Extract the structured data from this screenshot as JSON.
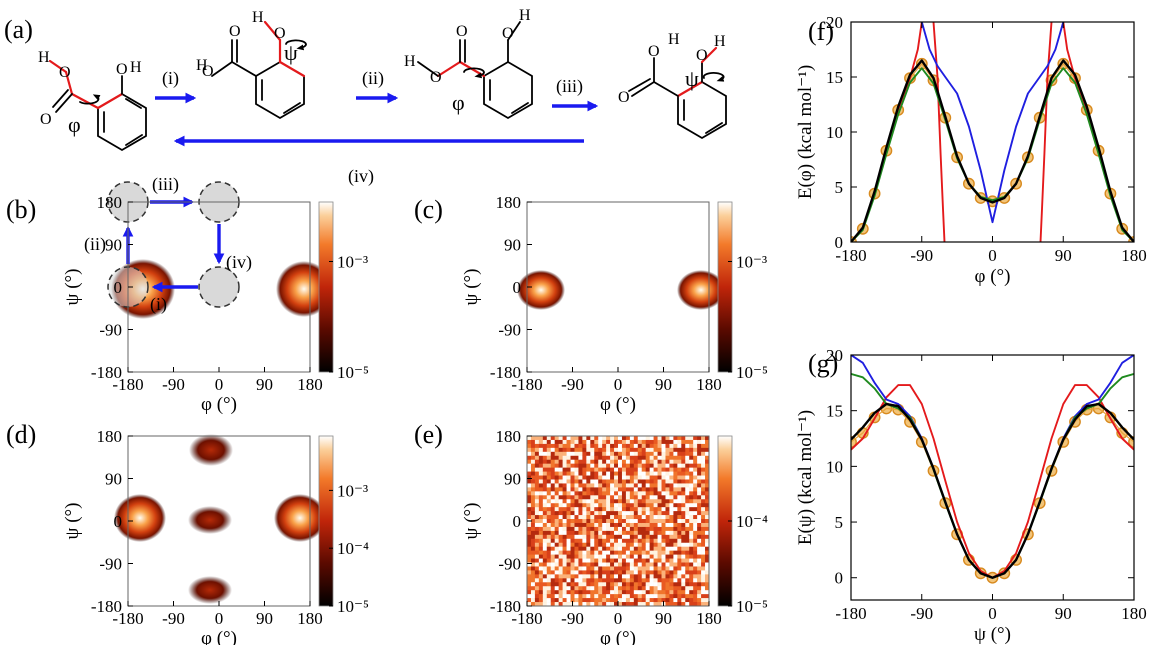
{
  "panel_labels": {
    "a": "(a)",
    "b": "(b)",
    "c": "(c)",
    "d": "(d)",
    "e": "(e)",
    "f": "(f)",
    "g": "(g)"
  },
  "scheme": {
    "steps": [
      "(i)",
      "(ii)",
      "(iii)",
      "(iv)"
    ],
    "atoms": {
      "O": "O",
      "H": "H"
    },
    "angles": {
      "phi": "φ",
      "psi": "ψ"
    }
  },
  "colors": {
    "arrow": "#1a1af0",
    "red": "#e41a1c",
    "orange": "#e8a23a",
    "green": "#1f8a1f",
    "blue": "#1f1fe0",
    "black": "#000000"
  },
  "maps": {
    "xlabel": "φ (°)",
    "ylabel": "ψ (°)",
    "ticks": [
      "-180",
      "-90",
      "0",
      "90",
      "180"
    ],
    "colorbar_ticks": {
      "b": [
        "10⁻³",
        "10⁻⁵"
      ],
      "c": [
        "10⁻³",
        "10⁻⁵"
      ],
      "d": [
        "10⁻³",
        "10⁻⁴",
        "10⁻⁵"
      ],
      "e": [
        "10⁻⁴",
        "10⁻⁵"
      ]
    },
    "path_labels": [
      "(i)",
      "(ii)",
      "(iii)",
      "(iv)"
    ]
  },
  "chart_data": [
    {
      "id": "f",
      "type": "line",
      "xlabel": "φ (°)",
      "ylabel": "E(φ) (kcal mol⁻¹)",
      "xlim": [
        -180,
        180
      ],
      "ylim": [
        0,
        20
      ],
      "xticks": [
        "-180",
        "-90",
        "0",
        "90",
        "180"
      ],
      "yticks": [
        "0",
        "5",
        "10",
        "15",
        "20"
      ],
      "series": [
        {
          "style": "orange-circles",
          "x": [
            -180,
            -165,
            -150,
            -135,
            -120,
            -105,
            -90,
            -75,
            -60,
            -45,
            -30,
            -15,
            0,
            15,
            30,
            45,
            60,
            75,
            90,
            105,
            120,
            135,
            150,
            165,
            180
          ],
          "values": [
            0,
            1.2,
            4.4,
            8.3,
            12.0,
            14.9,
            16.2,
            14.7,
            11.3,
            7.7,
            5.3,
            4.0,
            3.7,
            4.0,
            5.3,
            7.7,
            11.3,
            14.7,
            16.2,
            14.9,
            12.0,
            8.3,
            4.4,
            1.2,
            0
          ]
        },
        {
          "style": "black",
          "x": [
            -180,
            -165,
            -150,
            -135,
            -120,
            -105,
            -90,
            -75,
            -60,
            -45,
            -30,
            -15,
            0,
            15,
            30,
            45,
            60,
            75,
            90,
            105,
            120,
            135,
            150,
            165,
            180
          ],
          "values": [
            0,
            1.3,
            4.6,
            8.6,
            12.3,
            15.2,
            16.5,
            14.9,
            11.4,
            7.8,
            5.3,
            4.0,
            3.6,
            4.0,
            5.3,
            7.8,
            11.4,
            14.9,
            16.5,
            15.2,
            12.3,
            8.6,
            4.6,
            1.3,
            0
          ]
        },
        {
          "style": "green",
          "x": [
            -180,
            -165,
            -150,
            -135,
            -120,
            -105,
            -90,
            -75,
            -60,
            -45,
            -30,
            -15,
            0,
            15,
            30,
            45,
            60,
            75,
            90,
            105,
            120,
            135,
            150,
            165,
            180
          ],
          "values": [
            0,
            1.1,
            4.2,
            8.0,
            11.6,
            14.5,
            15.8,
            14.4,
            11.1,
            7.6,
            5.3,
            4.1,
            3.8,
            4.1,
            5.3,
            7.6,
            11.1,
            14.4,
            15.8,
            14.5,
            11.6,
            8.0,
            4.2,
            1.1,
            0
          ]
        },
        {
          "style": "blue",
          "x": [
            -90,
            -80,
            -70,
            -60,
            -45,
            -30,
            -15,
            -8,
            0,
            8,
            15,
            30,
            45,
            60,
            70,
            80,
            90
          ],
          "values": [
            20,
            17.5,
            16.0,
            15.0,
            13.5,
            10.5,
            6.5,
            4.3,
            1.8,
            4.3,
            6.5,
            10.5,
            13.5,
            15.0,
            16.0,
            17.5,
            20
          ]
        },
        {
          "style": "red",
          "x": [
            -180,
            -165,
            -150,
            -135,
            -120,
            -105,
            -95,
            -90
          ],
          "values": [
            0,
            1.2,
            4.4,
            8.3,
            12.0,
            14.9,
            17.5,
            20
          ]
        },
        {
          "style": "red",
          "x": [
            -75,
            -70,
            -66,
            -63,
            -61
          ],
          "values": [
            20,
            15,
            8,
            3,
            0
          ]
        },
        {
          "style": "red",
          "x": [
            61,
            63,
            66,
            70,
            75
          ],
          "values": [
            0,
            3,
            8,
            15,
            20
          ]
        },
        {
          "style": "red",
          "x": [
            90,
            95,
            105,
            120,
            135,
            150,
            165,
            180
          ],
          "values": [
            20,
            17.5,
            14.9,
            12.0,
            8.3,
            4.4,
            1.2,
            0
          ]
        }
      ]
    },
    {
      "id": "g",
      "type": "line",
      "xlabel": "ψ (°)",
      "ylabel": "E(ψ) (kcal mol⁻¹)",
      "xlim": [
        -180,
        180
      ],
      "ylim": [
        -2,
        20
      ],
      "xticks": [
        "-180",
        "-90",
        "0",
        "90",
        "180"
      ],
      "yticks": [
        "0",
        "5",
        "10",
        "15",
        "20"
      ],
      "series": [
        {
          "style": "orange-circles",
          "x": [
            -180,
            -165,
            -150,
            -135,
            -120,
            -105,
            -90,
            -75,
            -60,
            -45,
            -30,
            -15,
            0,
            15,
            30,
            45,
            60,
            75,
            90,
            105,
            120,
            135,
            150,
            165,
            180
          ],
          "values": [
            12.2,
            13.0,
            14.4,
            15.2,
            15.1,
            14.0,
            12.2,
            9.6,
            6.7,
            3.9,
            1.6,
            0.4,
            0,
            0.4,
            1.6,
            3.9,
            6.7,
            9.6,
            12.2,
            14.0,
            15.1,
            15.2,
            14.4,
            13.0,
            12.2
          ]
        },
        {
          "style": "black",
          "x": [
            -180,
            -165,
            -150,
            -135,
            -120,
            -105,
            -90,
            -75,
            -60,
            -45,
            -30,
            -15,
            0,
            15,
            30,
            45,
            60,
            75,
            90,
            105,
            120,
            135,
            150,
            165,
            180
          ],
          "values": [
            12.4,
            13.5,
            14.8,
            15.6,
            15.4,
            14.2,
            12.4,
            9.8,
            6.8,
            3.9,
            1.6,
            0.4,
            0,
            0.4,
            1.6,
            3.9,
            6.8,
            9.8,
            12.4,
            14.2,
            15.4,
            15.6,
            14.8,
            13.5,
            12.4
          ]
        },
        {
          "style": "green",
          "x": [
            -180,
            -165,
            -150,
            -135,
            -120,
            -105,
            -90,
            -75,
            -60,
            -45,
            -30,
            -15,
            0,
            15,
            30,
            45,
            60,
            75,
            90,
            105,
            120,
            135,
            150,
            165,
            180
          ],
          "values": [
            18.3,
            18.0,
            17.0,
            15.6,
            15.2,
            14.4,
            12.4,
            9.7,
            6.7,
            3.9,
            1.6,
            0.4,
            0,
            0.4,
            1.6,
            3.9,
            6.7,
            9.7,
            12.4,
            14.4,
            15.2,
            15.6,
            17.0,
            18.0,
            18.3
          ]
        },
        {
          "style": "blue",
          "x": [
            -180,
            -165,
            -150,
            -135,
            -120,
            -105,
            -90,
            -75,
            -60,
            -45,
            -30,
            -15,
            0,
            15,
            30,
            45,
            60,
            75,
            90,
            105,
            120,
            135,
            150,
            165,
            180
          ],
          "values": [
            20,
            19.3,
            17.5,
            16.0,
            15.6,
            14.5,
            12.5,
            9.8,
            6.8,
            3.9,
            1.6,
            0.4,
            0,
            0.4,
            1.6,
            3.9,
            6.8,
            9.8,
            12.5,
            14.5,
            15.6,
            16.0,
            17.5,
            19.3,
            20
          ]
        },
        {
          "style": "red",
          "x": [
            -180,
            -165,
            -150,
            -135,
            -120,
            -105,
            -90,
            -75,
            -60,
            -45,
            -30,
            -15,
            0,
            15,
            30,
            45,
            60,
            75,
            90,
            105,
            120,
            135,
            150,
            165,
            180
          ],
          "values": [
            11.5,
            12.5,
            14.3,
            16.2,
            17.3,
            17.3,
            15.6,
            12.5,
            8.7,
            5.0,
            2.2,
            0.6,
            0,
            0.6,
            2.2,
            5.0,
            8.7,
            12.5,
            15.6,
            17.3,
            17.3,
            16.2,
            14.3,
            12.5,
            11.5
          ]
        }
      ]
    }
  ]
}
